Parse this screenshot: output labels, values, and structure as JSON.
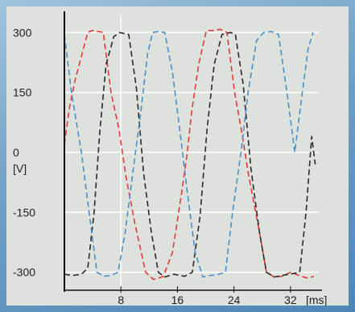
{
  "chart_data": {
    "type": "line",
    "title": "",
    "xlabel": "[ms]",
    "ylabel": "[V]",
    "xlim": [
      0,
      36
    ],
    "ylim": [
      -345,
      345
    ],
    "x_ticks": [
      8,
      16,
      24,
      32
    ],
    "y_ticks": [
      300,
      150,
      0,
      -150,
      -300
    ],
    "y_tick_labels": [
      "300",
      "150",
      "0",
      "-150",
      "-300"
    ],
    "x_tick_labels": [
      "8",
      "16",
      "24",
      "32"
    ],
    "grid": true,
    "legend": "none",
    "colors": [
      "#e03a3a",
      "#2a2a2a",
      "#4a90c8"
    ],
    "line_style": "dashed",
    "series": [
      {
        "color": "#e03a3a",
        "x": [
          0.0,
          0.7,
          1.5,
          2.4,
          3.3,
          4.0,
          5.5,
          6.6,
          7.7,
          8.7,
          10.0,
          11.5,
          12.6,
          13.3,
          14.0,
          15.3,
          16.6,
          17.4,
          18.0,
          19.0,
          20.1,
          21.2,
          22.0,
          23.0,
          24.1,
          25.2,
          26.0,
          27.5,
          28.6,
          29.7,
          30.8,
          32.0,
          33.5,
          34.5,
          35.3
        ],
        "y": [
          20,
          110,
          180,
          240,
          300,
          305,
          300,
          150,
          60,
          -60,
          -180,
          -300,
          -318,
          -315,
          -310,
          -250,
          -100,
          0,
          100,
          220,
          305,
          305,
          308,
          300,
          150,
          40,
          -50,
          -190,
          -300,
          -312,
          -310,
          -300,
          -310,
          -315,
          -310
        ]
      },
      {
        "color": "#2a2a2a",
        "x": [
          0.0,
          1.2,
          2.4,
          3.3,
          4.2,
          5.0,
          5.9,
          7.0,
          7.8,
          9.1,
          10.2,
          11.2,
          12.3,
          13.3,
          14.2,
          15.5,
          17.0,
          18.1,
          19.2,
          20.2,
          21.2,
          22.3,
          23.5,
          24.2,
          25.3,
          26.4,
          27.6,
          28.6,
          29.7,
          30.8,
          31.8,
          33.3,
          34.2,
          35.0,
          35.5
        ],
        "y": [
          -305,
          -308,
          -305,
          -290,
          -150,
          50,
          220,
          290,
          300,
          295,
          160,
          -50,
          -200,
          -300,
          -312,
          -305,
          -310,
          -300,
          -160,
          60,
          220,
          295,
          300,
          295,
          170,
          -40,
          -200,
          -300,
          -312,
          -308,
          -305,
          -300,
          -150,
          40,
          -30
        ]
      },
      {
        "color": "#4a90c8",
        "x": [
          0.0,
          1.0,
          2.4,
          3.5,
          4.6,
          5.6,
          6.6,
          7.6,
          8.6,
          9.7,
          10.8,
          11.8,
          12.5,
          13.2,
          14.2,
          15.3,
          16.3,
          17.4,
          18.5,
          19.6,
          20.6,
          21.7,
          22.8,
          23.8,
          25.0,
          26.0,
          27.2,
          28.2,
          29.3,
          30.3,
          31.5,
          32.6,
          33.6,
          34.5,
          35.2
        ],
        "y": [
          295,
          150,
          0,
          -150,
          -300,
          -310,
          -308,
          -300,
          -200,
          -50,
          100,
          250,
          300,
          302,
          300,
          200,
          60,
          -100,
          -250,
          -312,
          -308,
          -306,
          -300,
          -150,
          0,
          150,
          280,
          300,
          302,
          295,
          150,
          0,
          140,
          260,
          300
        ]
      }
    ]
  }
}
